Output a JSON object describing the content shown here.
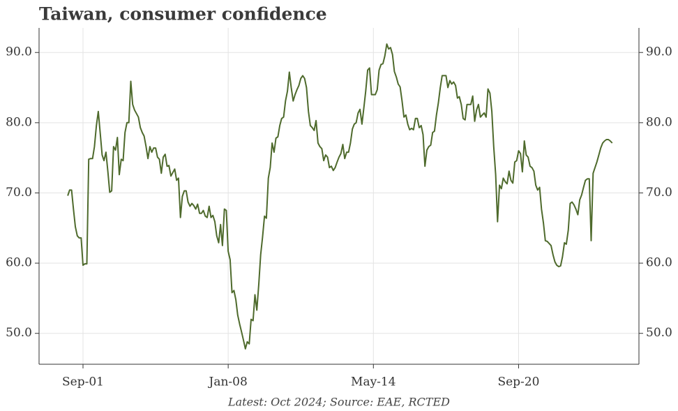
{
  "chart_data": {
    "type": "line",
    "title": "Taiwan, consumer confidence",
    "caption": "Latest: Oct 2024; Source: EAE, RCTED",
    "color": "#4e6a2c",
    "grid": true,
    "xlim": [
      "1999-10",
      "2025-12"
    ],
    "xticks": [
      {
        "value": "2001-09",
        "label": "Sep-01"
      },
      {
        "value": "2008-01",
        "label": "Jan-08"
      },
      {
        "value": "2014-05",
        "label": "May-14"
      },
      {
        "value": "2020-09",
        "label": "Sep-20"
      }
    ],
    "ylim": [
      45.6,
      93.5
    ],
    "yticks": [
      {
        "value": 50,
        "label": "50.0"
      },
      {
        "value": 60,
        "label": "60.0"
      },
      {
        "value": 70,
        "label": "70.0"
      },
      {
        "value": 80,
        "label": "80.0"
      },
      {
        "value": 90,
        "label": "90.0"
      }
    ],
    "x": [
      "2001-01",
      "2001-02",
      "2001-03",
      "2001-04",
      "2001-05",
      "2001-06",
      "2001-07",
      "2001-08",
      "2001-09",
      "2001-10",
      "2001-11",
      "2001-12",
      "2002-01",
      "2002-02",
      "2002-03",
      "2002-04",
      "2002-05",
      "2002-06",
      "2002-07",
      "2002-08",
      "2002-09",
      "2002-10",
      "2002-11",
      "2002-12",
      "2003-01",
      "2003-02",
      "2003-03",
      "2003-04",
      "2003-05",
      "2003-06",
      "2003-07",
      "2003-08",
      "2003-09",
      "2003-10",
      "2003-11",
      "2003-12",
      "2004-01",
      "2004-02",
      "2004-03",
      "2004-04",
      "2004-05",
      "2004-06",
      "2004-07",
      "2004-08",
      "2004-09",
      "2004-10",
      "2004-11",
      "2004-12",
      "2005-01",
      "2005-02",
      "2005-03",
      "2005-04",
      "2005-05",
      "2005-06",
      "2005-07",
      "2005-08",
      "2005-09",
      "2005-10",
      "2005-11",
      "2005-12",
      "2006-01",
      "2006-02",
      "2006-03",
      "2006-04",
      "2006-05",
      "2006-06",
      "2006-07",
      "2006-08",
      "2006-09",
      "2006-10",
      "2006-11",
      "2006-12",
      "2007-01",
      "2007-02",
      "2007-03",
      "2007-04",
      "2007-05",
      "2007-06",
      "2007-07",
      "2007-08",
      "2007-09",
      "2007-10",
      "2007-11",
      "2007-12",
      "2008-01",
      "2008-02",
      "2008-03",
      "2008-04",
      "2008-05",
      "2008-06",
      "2008-07",
      "2008-08",
      "2008-09",
      "2008-10",
      "2008-11",
      "2008-12",
      "2009-01",
      "2009-02",
      "2009-03",
      "2009-04",
      "2009-05",
      "2009-06",
      "2009-07",
      "2009-08",
      "2009-09",
      "2009-10",
      "2009-11",
      "2009-12",
      "2010-01",
      "2010-02",
      "2010-03",
      "2010-04",
      "2010-05",
      "2010-06",
      "2010-07",
      "2010-08",
      "2010-09",
      "2010-10",
      "2010-11",
      "2010-12",
      "2011-01",
      "2011-02",
      "2011-03",
      "2011-04",
      "2011-05",
      "2011-06",
      "2011-07",
      "2011-08",
      "2011-09",
      "2011-10",
      "2011-11",
      "2011-12",
      "2012-01",
      "2012-02",
      "2012-03",
      "2012-04",
      "2012-05",
      "2012-06",
      "2012-07",
      "2012-08",
      "2012-09",
      "2012-10",
      "2012-11",
      "2012-12",
      "2013-01",
      "2013-02",
      "2013-03",
      "2013-04",
      "2013-05",
      "2013-06",
      "2013-07",
      "2013-08",
      "2013-09",
      "2013-10",
      "2013-11",
      "2013-12",
      "2014-01",
      "2014-02",
      "2014-03",
      "2014-04",
      "2014-05",
      "2014-06",
      "2014-07",
      "2014-08",
      "2014-09",
      "2014-10",
      "2014-11",
      "2014-12",
      "2015-01",
      "2015-02",
      "2015-03",
      "2015-04",
      "2015-05",
      "2015-06",
      "2015-07",
      "2015-08",
      "2015-09",
      "2015-10",
      "2015-11",
      "2015-12",
      "2016-01",
      "2016-02",
      "2016-03",
      "2016-04",
      "2016-05",
      "2016-06",
      "2016-07",
      "2016-08",
      "2016-09",
      "2016-10",
      "2016-11",
      "2016-12",
      "2017-01",
      "2017-02",
      "2017-03",
      "2017-04",
      "2017-05",
      "2017-06",
      "2017-07",
      "2017-08",
      "2017-09",
      "2017-10",
      "2017-11",
      "2017-12",
      "2018-01",
      "2018-02",
      "2018-03",
      "2018-04",
      "2018-05",
      "2018-06",
      "2018-07",
      "2018-08",
      "2018-09",
      "2018-10",
      "2018-11",
      "2018-12",
      "2019-01",
      "2019-02",
      "2019-03",
      "2019-04",
      "2019-05",
      "2019-06",
      "2019-07",
      "2019-08",
      "2019-09",
      "2019-10",
      "2019-11",
      "2019-12",
      "2020-01",
      "2020-02",
      "2020-03",
      "2020-04",
      "2020-05",
      "2020-06",
      "2020-07",
      "2020-08",
      "2020-09",
      "2020-10",
      "2020-11",
      "2020-12",
      "2021-01",
      "2021-02",
      "2021-03",
      "2021-04",
      "2021-05",
      "2021-06",
      "2021-07",
      "2021-08",
      "2021-09",
      "2021-10",
      "2021-11",
      "2021-12",
      "2022-01",
      "2022-02",
      "2022-03",
      "2022-04",
      "2022-05",
      "2022-06",
      "2022-07",
      "2022-08",
      "2022-09",
      "2022-10",
      "2022-11",
      "2022-12",
      "2023-01",
      "2023-02",
      "2023-03",
      "2023-04",
      "2023-05",
      "2023-06",
      "2023-07",
      "2023-08",
      "2023-09",
      "2023-10",
      "2023-11",
      "2023-12",
      "2024-01",
      "2024-02",
      "2024-03",
      "2024-04",
      "2024-05",
      "2024-06",
      "2024-07",
      "2024-08",
      "2024-09",
      "2024-10"
    ],
    "values": [
      69.6,
      70.4,
      70.4,
      67.7,
      65.2,
      63.9,
      63.6,
      63.6,
      59.7,
      59.9,
      59.9,
      74.8,
      74.9,
      74.9,
      76.6,
      79.6,
      81.6,
      78.6,
      75.4,
      74.6,
      75.8,
      73.1,
      70.1,
      70.3,
      76.6,
      76.1,
      77.9,
      72.6,
      74.8,
      74.6,
      78.6,
      80.0,
      80.0,
      85.9,
      82.6,
      81.8,
      81.3,
      80.8,
      79.3,
      78.6,
      78.1,
      76.6,
      74.9,
      76.6,
      75.8,
      76.4,
      76.4,
      75.1,
      74.8,
      72.8,
      75.1,
      75.5,
      73.8,
      73.9,
      72.4,
      72.9,
      73.4,
      71.8,
      72.1,
      66.5,
      69.5,
      70.3,
      70.3,
      68.7,
      68.1,
      68.5,
      68.2,
      67.7,
      68.4,
      67.1,
      67.1,
      67.5,
      66.7,
      66.5,
      68.1,
      66.5,
      66.8,
      65.9,
      63.9,
      62.9,
      65.5,
      62.5,
      67.7,
      67.5,
      61.7,
      60.5,
      55.8,
      56.1,
      54.8,
      52.6,
      51.3,
      50.2,
      49.0,
      47.8,
      48.8,
      48.5,
      52.0,
      51.8,
      55.5,
      53.3,
      57.0,
      61.2,
      63.7,
      66.7,
      66.4,
      72.1,
      73.6,
      77.1,
      75.8,
      77.8,
      78.0,
      79.6,
      80.6,
      80.8,
      83.1,
      84.5,
      87.2,
      85.0,
      83.1,
      84.0,
      84.7,
      85.3,
      86.3,
      86.7,
      86.3,
      85.0,
      81.6,
      79.6,
      79.3,
      78.9,
      80.3,
      77.1,
      76.6,
      76.3,
      74.6,
      75.4,
      75.1,
      73.6,
      73.8,
      73.2,
      73.6,
      74.4,
      75.1,
      75.6,
      76.9,
      74.9,
      75.8,
      75.8,
      77.1,
      79.1,
      79.8,
      80.0,
      81.4,
      81.9,
      79.8,
      82.1,
      84.5,
      87.5,
      87.8,
      84.0,
      84.0,
      84.0,
      84.7,
      87.5,
      88.3,
      88.4,
      89.5,
      91.2,
      90.5,
      90.7,
      89.7,
      87.3,
      86.5,
      85.5,
      85.1,
      83.1,
      80.8,
      81.1,
      79.8,
      79.0,
      79.2,
      79.0,
      80.6,
      80.6,
      79.3,
      79.6,
      78.3,
      73.8,
      76.1,
      76.6,
      76.8,
      78.6,
      78.8,
      81.1,
      82.8,
      85.0,
      86.7,
      86.7,
      86.7,
      85.0,
      86.0,
      85.5,
      85.8,
      85.3,
      83.5,
      83.7,
      82.6,
      80.6,
      80.4,
      82.6,
      82.6,
      82.6,
      83.8,
      80.2,
      81.8,
      82.6,
      80.8,
      81.1,
      81.4,
      80.8,
      84.8,
      84.2,
      81.6,
      76.6,
      72.6,
      65.9,
      71.1,
      70.6,
      72.1,
      71.6,
      71.3,
      73.1,
      71.8,
      71.4,
      74.4,
      74.6,
      76.0,
      75.6,
      73.0,
      77.4,
      75.4,
      75.1,
      73.8,
      73.6,
      73.1,
      71.1,
      70.4,
      70.8,
      67.7,
      65.7,
      63.2,
      63.1,
      62.8,
      62.5,
      61.2,
      60.2,
      59.7,
      59.5,
      59.6,
      60.9,
      62.9,
      62.7,
      64.7,
      68.5,
      68.7,
      68.3,
      67.7,
      66.9,
      69.0,
      69.7,
      70.8,
      71.8,
      72.0,
      72.0,
      63.2,
      72.8,
      73.6,
      74.4,
      75.4,
      76.4,
      77.1,
      77.4,
      77.6,
      77.6,
      77.4,
      77.1
    ]
  }
}
